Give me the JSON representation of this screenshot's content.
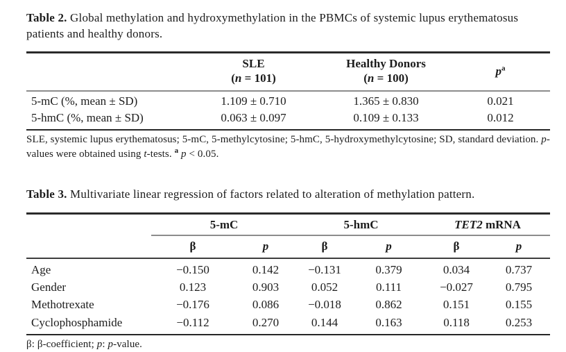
{
  "page": {
    "background": "#ffffff",
    "text_color": "#1c1c1c",
    "rule_dark_color": "#2a2a2a",
    "rule_gray_color": "#8c8c8c"
  },
  "table2": {
    "caption_label": "Table 2.",
    "caption_text": " Global methylation and hydroxymethylation in the PBMCs of systemic lupus erythematosus patients and healthy donors.",
    "header": {
      "sle": {
        "line1": "SLE",
        "n_pre": "(",
        "n_it": "n",
        "n_post": " = 101)"
      },
      "healthy": {
        "line1": "Healthy Donors",
        "n_pre": "(",
        "n_it": "n",
        "n_post": " = 100)"
      },
      "p": {
        "symbol": "p",
        "sup": "a"
      }
    },
    "rows": [
      {
        "label": "5-mC (%, mean ± SD)",
        "sle": "1.109 ± 0.710",
        "healthy": "1.365 ± 0.830",
        "p": "0.021"
      },
      {
        "label": "5-hmC (%, mean ± SD)",
        "sle": "0.063 ± 0.097",
        "healthy": "0.109 ± 0.133",
        "p": "0.012"
      }
    ],
    "footnote": {
      "s0": "SLE, systemic lupus erythematosus; 5-mC, 5-methylcytosine; 5-hmC, 5-hydroxymethylcytosine; SD, standard deviation. ",
      "s1": "p",
      "s2": "-values were obtained using ",
      "s3": "t",
      "s4": "-tests. ",
      "s5": "a",
      "s6": " ",
      "s7": "p",
      "s8": " < 0.05."
    }
  },
  "table3": {
    "caption_label": "Table 3.",
    "caption_text": " Multivariate linear regression of factors related to alteration of methylation pattern.",
    "groups": {
      "g1": "5-mC",
      "g2": "5-hmC",
      "g3_italic": "TET2",
      "g3_rest": " mRNA"
    },
    "subheaders": {
      "beta": "β",
      "p": "p"
    },
    "rows": [
      {
        "label": "Age",
        "values": [
          "−0.150",
          "0.142",
          "−0.131",
          "0.379",
          "0.034",
          "0.737"
        ]
      },
      {
        "label": "Gender",
        "values": [
          "0.123",
          "0.903",
          "0.052",
          "0.111",
          "−0.027",
          "0.795"
        ]
      },
      {
        "label": "Methotrexate",
        "values": [
          "−0.176",
          "0.086",
          "−0.018",
          "0.862",
          "0.151",
          "0.155"
        ]
      },
      {
        "label": "Cyclophosphamide",
        "values": [
          "−0.112",
          "0.270",
          "0.144",
          "0.163",
          "0.118",
          "0.253"
        ]
      }
    ],
    "footnote": {
      "s0": "β: β-coefficient; ",
      "s1": "p",
      "s2": ": ",
      "s3": "p",
      "s4": "-value."
    }
  }
}
